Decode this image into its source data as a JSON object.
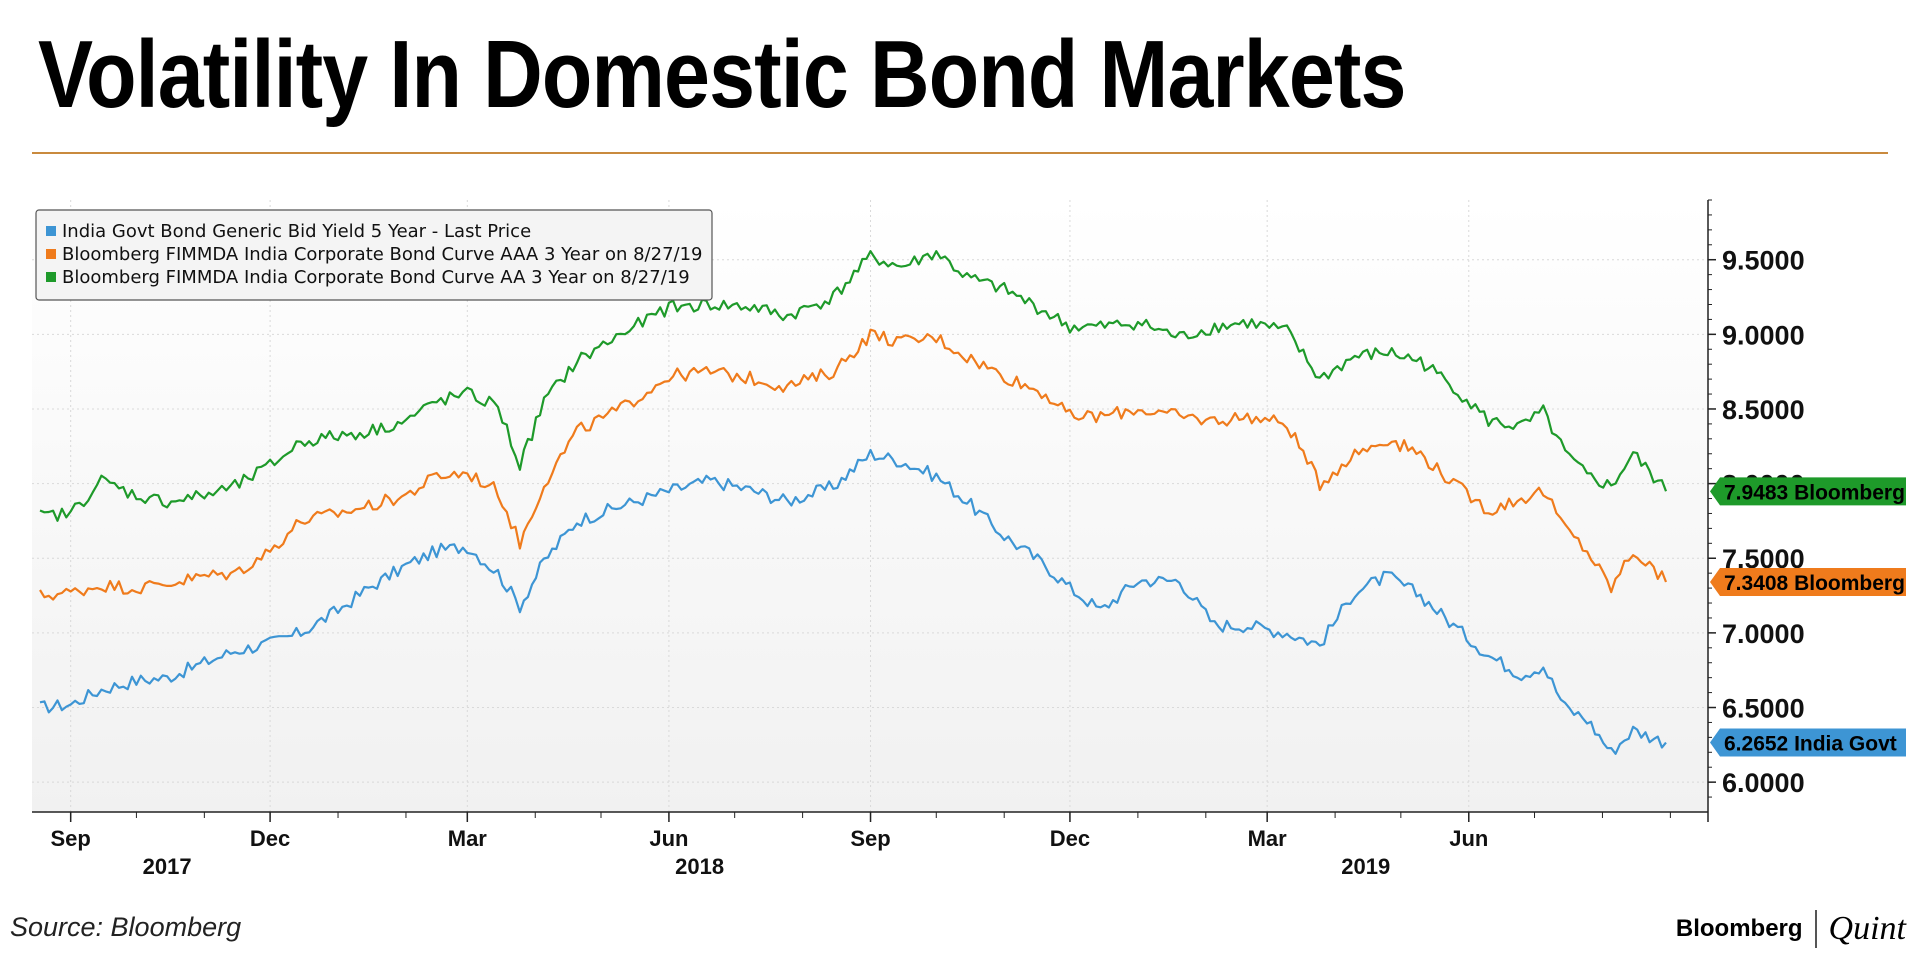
{
  "header": {
    "title": "Volatility In Domestic Bond Markets"
  },
  "footer": {
    "source": "Source: Bloomberg",
    "brand_primary": "Bloomberg",
    "brand_secondary": "Quint"
  },
  "colors": {
    "govt": "#3d95d4",
    "aaa": "#ef7b1c",
    "aa": "#1e9a2a",
    "rule": "#c98a3e"
  },
  "chart_data": {
    "type": "line",
    "title": "Volatility In Domestic Bond Markets",
    "ylim": [
      5.8,
      9.9
    ],
    "y_ticks": [
      "9.5000",
      "9.0000",
      "8.5000",
      "8.0000",
      "7.5000",
      "7.0000",
      "6.5000",
      "6.0000"
    ],
    "y_tick_values": [
      9.5,
      9.0,
      8.5,
      8.0,
      7.5,
      7.0,
      6.5,
      6.0
    ],
    "x_range": [
      "2017-08-18",
      "2019-08-30"
    ],
    "x_ticks": [
      {
        "label": "Sep",
        "date": "2017-09-01"
      },
      {
        "label": "Dec",
        "date": "2017-12-01"
      },
      {
        "label": "Mar",
        "date": "2018-03-01"
      },
      {
        "label": "Jun",
        "date": "2018-06-01"
      },
      {
        "label": "Sep",
        "date": "2018-09-01"
      },
      {
        "label": "Dec",
        "date": "2018-12-01"
      },
      {
        "label": "Mar",
        "date": "2019-03-01"
      },
      {
        "label": "Jun",
        "date": "2019-06-01"
      }
    ],
    "year_labels": [
      {
        "label": "2017",
        "date": "2017-10-15"
      },
      {
        "label": "2018",
        "date": "2018-06-15"
      },
      {
        "label": "2019",
        "date": "2019-04-15"
      }
    ],
    "grid": true,
    "legend_position": "top-left",
    "series": [
      {
        "name": "India Govt Bond Generic Bid Yield 5 Year - Last Price",
        "color_key": "govt",
        "last_label": "6.2652 India Govt",
        "last_value": 6.2652,
        "points": [
          [
            "2017-08-18",
            6.5
          ],
          [
            "2017-09-01",
            6.52
          ],
          [
            "2017-09-15",
            6.62
          ],
          [
            "2017-10-01",
            6.68
          ],
          [
            "2017-10-15",
            6.7
          ],
          [
            "2017-11-01",
            6.8
          ],
          [
            "2017-11-15",
            6.88
          ],
          [
            "2017-12-01",
            6.93
          ],
          [
            "2017-12-15",
            7.0
          ],
          [
            "2018-01-01",
            7.15
          ],
          [
            "2018-01-15",
            7.3
          ],
          [
            "2018-02-01",
            7.45
          ],
          [
            "2018-02-15",
            7.55
          ],
          [
            "2018-03-01",
            7.58
          ],
          [
            "2018-03-15",
            7.4
          ],
          [
            "2018-03-25",
            7.18
          ],
          [
            "2018-04-05",
            7.48
          ],
          [
            "2018-04-20",
            7.75
          ],
          [
            "2018-05-10",
            7.85
          ],
          [
            "2018-06-01",
            7.95
          ],
          [
            "2018-06-20",
            8.02
          ],
          [
            "2018-07-10",
            7.95
          ],
          [
            "2018-07-25",
            7.88
          ],
          [
            "2018-08-15",
            7.98
          ],
          [
            "2018-09-01",
            8.2
          ],
          [
            "2018-09-15",
            8.15
          ],
          [
            "2018-10-01",
            8.05
          ],
          [
            "2018-10-15",
            7.88
          ],
          [
            "2018-11-01",
            7.65
          ],
          [
            "2018-11-20",
            7.45
          ],
          [
            "2018-12-01",
            7.3
          ],
          [
            "2018-12-15",
            7.15
          ],
          [
            "2019-01-01",
            7.35
          ],
          [
            "2019-01-20",
            7.35
          ],
          [
            "2019-02-05",
            7.05
          ],
          [
            "2019-02-20",
            7.05
          ],
          [
            "2019-03-10",
            7.0
          ],
          [
            "2019-03-25",
            6.92
          ],
          [
            "2019-04-10",
            7.28
          ],
          [
            "2019-04-25",
            7.38
          ],
          [
            "2019-05-10",
            7.25
          ],
          [
            "2019-05-25",
            7.05
          ],
          [
            "2019-06-10",
            6.85
          ],
          [
            "2019-06-25",
            6.72
          ],
          [
            "2019-07-05",
            6.78
          ],
          [
            "2019-07-15",
            6.5
          ],
          [
            "2019-07-25",
            6.42
          ],
          [
            "2019-08-05",
            6.2
          ],
          [
            "2019-08-15",
            6.35
          ],
          [
            "2019-08-30",
            6.2652
          ]
        ]
      },
      {
        "name": "Bloomberg FIMMDA India Corporate Bond Curve AAA 3 Year  on 8/27/19",
        "color_key": "aaa",
        "last_label": "7.3408 Bloomberg",
        "last_value": 7.3408,
        "points": [
          [
            "2017-08-18",
            7.25
          ],
          [
            "2017-09-01",
            7.27
          ],
          [
            "2017-09-15",
            7.32
          ],
          [
            "2017-10-01",
            7.3
          ],
          [
            "2017-10-15",
            7.33
          ],
          [
            "2017-11-01",
            7.38
          ],
          [
            "2017-11-15",
            7.4
          ],
          [
            "2017-12-01",
            7.55
          ],
          [
            "2017-12-15",
            7.75
          ],
          [
            "2018-01-01",
            7.8
          ],
          [
            "2018-01-15",
            7.85
          ],
          [
            "2018-02-01",
            7.92
          ],
          [
            "2018-02-15",
            8.05
          ],
          [
            "2018-03-01",
            8.07
          ],
          [
            "2018-03-15",
            7.95
          ],
          [
            "2018-03-25",
            7.6
          ],
          [
            "2018-04-05",
            8.0
          ],
          [
            "2018-04-20",
            8.35
          ],
          [
            "2018-05-10",
            8.5
          ],
          [
            "2018-06-01",
            8.72
          ],
          [
            "2018-06-20",
            8.75
          ],
          [
            "2018-07-10",
            8.7
          ],
          [
            "2018-07-25",
            8.65
          ],
          [
            "2018-08-15",
            8.75
          ],
          [
            "2018-09-01",
            9.0
          ],
          [
            "2018-09-15",
            8.95
          ],
          [
            "2018-10-01",
            8.98
          ],
          [
            "2018-10-15",
            8.85
          ],
          [
            "2018-11-01",
            8.72
          ],
          [
            "2018-11-20",
            8.6
          ],
          [
            "2018-12-01",
            8.45
          ],
          [
            "2018-12-15",
            8.45
          ],
          [
            "2019-01-01",
            8.5
          ],
          [
            "2019-01-20",
            8.45
          ],
          [
            "2019-02-05",
            8.42
          ],
          [
            "2019-02-20",
            8.45
          ],
          [
            "2019-03-10",
            8.4
          ],
          [
            "2019-03-25",
            8.0
          ],
          [
            "2019-04-10",
            8.2
          ],
          [
            "2019-04-25",
            8.3
          ],
          [
            "2019-05-10",
            8.2
          ],
          [
            "2019-05-25",
            8.0
          ],
          [
            "2019-06-10",
            7.82
          ],
          [
            "2019-06-25",
            7.9
          ],
          [
            "2019-07-05",
            7.95
          ],
          [
            "2019-07-15",
            7.7
          ],
          [
            "2019-07-25",
            7.55
          ],
          [
            "2019-08-05",
            7.3
          ],
          [
            "2019-08-15",
            7.55
          ],
          [
            "2019-08-30",
            7.3408
          ]
        ]
      },
      {
        "name": "Bloomberg FIMMDA India Corporate Bond Curve AA 3 Year  on 8/27/19",
        "color_key": "aa",
        "last_label": "7.9483 Bloomberg",
        "last_value": 7.9483,
        "points": [
          [
            "2017-08-18",
            7.78
          ],
          [
            "2017-09-01",
            7.8
          ],
          [
            "2017-09-15",
            8.02
          ],
          [
            "2017-10-01",
            7.92
          ],
          [
            "2017-10-15",
            7.88
          ],
          [
            "2017-11-01",
            7.92
          ],
          [
            "2017-11-15",
            7.98
          ],
          [
            "2017-12-01",
            8.12
          ],
          [
            "2017-12-15",
            8.28
          ],
          [
            "2018-01-01",
            8.32
          ],
          [
            "2018-01-15",
            8.35
          ],
          [
            "2018-02-01",
            8.42
          ],
          [
            "2018-02-15",
            8.55
          ],
          [
            "2018-03-01",
            8.6
          ],
          [
            "2018-03-15",
            8.52
          ],
          [
            "2018-03-25",
            8.12
          ],
          [
            "2018-04-05",
            8.55
          ],
          [
            "2018-04-20",
            8.82
          ],
          [
            "2018-05-10",
            9.0
          ],
          [
            "2018-06-01",
            9.18
          ],
          [
            "2018-06-20",
            9.2
          ],
          [
            "2018-07-10",
            9.18
          ],
          [
            "2018-07-25",
            9.12
          ],
          [
            "2018-08-15",
            9.25
          ],
          [
            "2018-09-01",
            9.52
          ],
          [
            "2018-09-15",
            9.45
          ],
          [
            "2018-10-01",
            9.55
          ],
          [
            "2018-10-15",
            9.38
          ],
          [
            "2018-11-01",
            9.3
          ],
          [
            "2018-11-20",
            9.15
          ],
          [
            "2018-12-01",
            9.05
          ],
          [
            "2018-12-15",
            9.05
          ],
          [
            "2019-01-01",
            9.08
          ],
          [
            "2019-01-20",
            8.98
          ],
          [
            "2019-02-05",
            9.05
          ],
          [
            "2019-02-20",
            9.08
          ],
          [
            "2019-03-10",
            9.02
          ],
          [
            "2019-03-25",
            8.7
          ],
          [
            "2019-04-10",
            8.85
          ],
          [
            "2019-04-25",
            8.88
          ],
          [
            "2019-05-10",
            8.82
          ],
          [
            "2019-05-25",
            8.65
          ],
          [
            "2019-06-10",
            8.42
          ],
          [
            "2019-06-25",
            8.38
          ],
          [
            "2019-07-05",
            8.48
          ],
          [
            "2019-07-15",
            8.2
          ],
          [
            "2019-07-25",
            8.05
          ],
          [
            "2019-08-05",
            7.98
          ],
          [
            "2019-08-15",
            8.2
          ],
          [
            "2019-08-30",
            7.9483
          ]
        ]
      }
    ]
  }
}
